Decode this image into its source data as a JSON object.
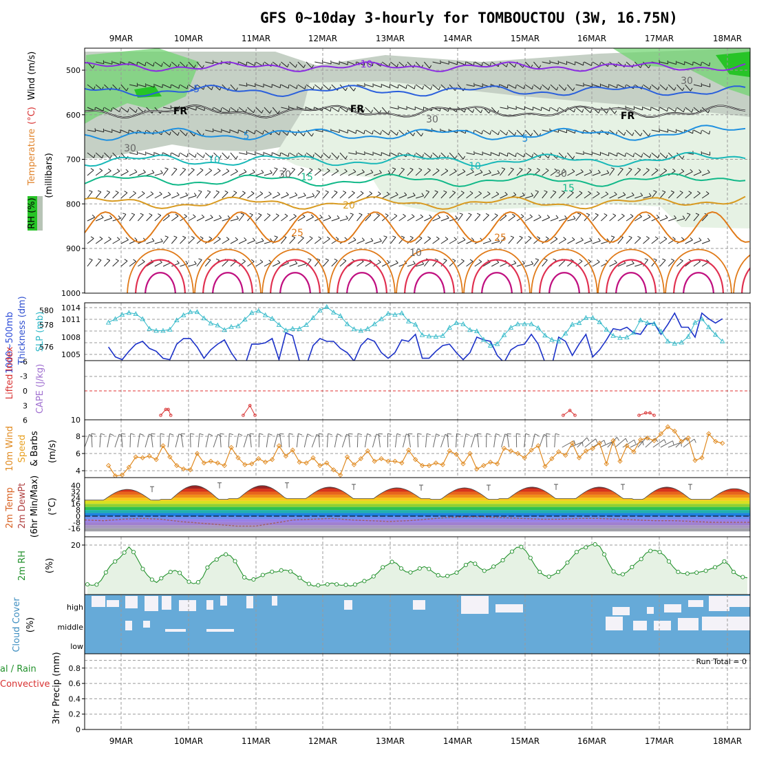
{
  "title": "GFS 0~10day 3-hourly for TOMBOUCTOU (3W, 16.75N)",
  "dates": [
    "9MAR",
    "10MAR",
    "11MAR",
    "12MAR",
    "13MAR",
    "14MAR",
    "15MAR",
    "16MAR",
    "17MAR",
    "18MAR"
  ],
  "run_total": "Run Total = 0",
  "colors": {
    "temp_-10": "#8a2be2",
    "temp_-5": "#2a5fdc",
    "temp_FR": "#000000",
    "temp_5": "#1e90e0",
    "temp_10": "#18b8b8",
    "temp_15": "#10b888",
    "temp_20": "#d89a20",
    "temp_25": "#e07a18",
    "temp_30": "#e03050",
    "temp_35": "#c01080",
    "thickness": "#1a30c8",
    "slp": "#30b8c8",
    "wind10": "#e08a20",
    "rh2m": "#20902a",
    "cloud": "#66aad8",
    "rh_moist": "#6cd46c",
    "rh_dry": "#b9c7b8"
  },
  "panels": {
    "upper": {
      "ylabel_parts": [
        "RH (%)",
        "Temperature",
        "(°C)",
        "Wind (m/s)",
        "(millibars)"
      ],
      "yticks": [
        "500",
        "600",
        "700",
        "800",
        "900",
        "1000"
      ],
      "contour_labels": [
        "-10",
        "-5",
        "FR",
        "FR",
        "FR",
        "5",
        "5",
        "10",
        "10",
        "15",
        "15",
        "20",
        "25",
        "25",
        "30",
        "30",
        "30",
        "30",
        "30",
        "10"
      ]
    },
    "thick": {
      "ylabel_parts": [
        "1000~500mb",
        "Thickness (dm)",
        "SLP (mb)"
      ],
      "yticks_left": [
        "580",
        "578",
        "576"
      ],
      "yticks_right": [
        "1014",
        "1011",
        "1008",
        "1005"
      ]
    },
    "li": {
      "ylabel_parts": [
        "Lifted Index",
        "CAPE (J/kg)"
      ],
      "yticks": [
        "-6",
        "-3",
        "0",
        "3",
        "6"
      ],
      "yticks_cape": [
        "10"
      ]
    },
    "wind": {
      "ylabel_parts": [
        "10m Wind",
        "Speed",
        "& Barbs",
        "(m/s)"
      ],
      "yticks": [
        "8",
        "6",
        "4"
      ]
    },
    "temp": {
      "ylabel_parts": [
        "2m Temp",
        "2m DewPt",
        "(6hr Min/Max)",
        "(°C)"
      ],
      "yticks": [
        "40",
        "32",
        "24",
        "16",
        "8",
        "0",
        "-8",
        "-16"
      ]
    },
    "rh": {
      "ylabel_parts": [
        "2m RH",
        "(%)"
      ],
      "yticks": [
        "20"
      ]
    },
    "cloud": {
      "ylabel_parts": [
        "Cloud Cover",
        "(%)"
      ],
      "levels": [
        "high",
        "middle",
        "low"
      ]
    },
    "precip": {
      "ylabel_parts": [
        "Total / Rain",
        "Convective",
        "3hr Precip (mm)"
      ],
      "yticks": [
        "0.8",
        "0.6",
        "0.4",
        "0.2",
        "0"
      ]
    }
  },
  "chart_data": [
    {
      "type": "line",
      "name": "1000-500mb thickness (dm) & SLP (mb)",
      "x_unit": "3-hourly steps from 08MAR 18Z",
      "series": [
        {
          "name": "Thickness (dm)",
          "values": [
            577.6,
            576.9,
            576.7,
            577.3,
            577.8,
            578.0,
            577.5,
            577.3,
            576.8,
            576.7,
            577.8,
            578.2,
            578.2,
            577.6,
            576.8,
            577.4,
            577.8,
            578.1,
            577.2,
            576.5,
            576.3,
            577.8,
            577.8,
            577.9,
            578.2,
            576.7,
            578.6,
            578.4,
            576.6,
            576.3,
            577.7,
            578.2,
            578.0,
            578.0,
            577.5,
            577.2,
            576.6,
            577.7,
            578.2,
            578.0,
            577.2,
            576.8,
            577.2,
            578.1,
            578.0,
            578.5,
            576.8,
            576.8,
            577.3,
            577.7,
            577.8,
            577.2,
            576.7,
            577.2,
            578.3,
            578.1,
            578.0,
            577.0,
            576.5,
            577.4,
            577.7,
            577.8,
            578.5,
            577.8,
            576.5,
            576.3,
            578.3,
            578.0,
            577.0,
            577.8,
            578.5,
            576.9,
            577.4,
            578.1,
            578.9,
            578.8,
            579.0,
            578.6,
            578.5,
            579.2,
            579.3,
            578.5,
            579.2,
            580.0,
            579.0,
            579.0,
            578.3,
            580.0,
            579.6,
            579.3,
            579.6
          ]
        },
        {
          "name": "SLP (mb)",
          "values": [
            1010.2,
            1011.1,
            1012.2,
            1012.7,
            1012.4,
            1011.1,
            1008.6,
            1008.1,
            1008.1,
            1008.4,
            1010.8,
            1012.1,
            1012.9,
            1012.9,
            1011.3,
            1010.0,
            1009.5,
            1008.3,
            1009.1,
            1009.3,
            1011.0,
            1012.7,
            1013.2,
            1012.1,
            1011.2,
            1009.6,
            1008.2,
            1008.6,
            1008.6,
            1009.6,
            1011.4,
            1013.3,
            1014.2,
            1012.8,
            1011.9,
            1009.8,
            1008.5,
            1008.1,
            1008.6,
            1009.8,
            1011.1,
            1012.5,
            1012.2,
            1012.6,
            1010.5,
            1009.7,
            1007.0,
            1006.7,
            1006.6,
            1006.8,
            1008.9,
            1010.1,
            1009.8,
            1008.3,
            1008.0,
            1005.8,
            1004.3,
            1004.7,
            1007.0,
            1008.9,
            1009.8,
            1009.8,
            1009.8,
            1008.8,
            1006.9,
            1005.8,
            1005.4,
            1007.4,
            1009.7,
            1010.1,
            1011.4,
            1011.4,
            1010.3,
            1008.4,
            1006.8,
            1006.3,
            1006.4,
            1007.6,
            1010.8,
            1010.1,
            1009.9,
            1007.9,
            1005.4,
            1004.8,
            1005.1,
            1006.6,
            1010.2,
            1011.1,
            1009.0,
            1007.1,
            1005.4
          ]
        }
      ]
    },
    {
      "type": "line",
      "name": "Lifted Index",
      "series": [
        {
          "name": "Lifted Index",
          "segments": [
            [
              [
                8.7,
                5.0
              ],
              [
                9.3,
                3.8
              ],
              [
                9.6,
                3.8
              ],
              [
                9.9,
                5.0
              ]
            ],
            [
              [
                18.5,
                5.0
              ],
              [
                19.3,
                3.0
              ],
              [
                19.9,
                5.0
              ]
            ],
            [
              [
                56.5,
                5.0
              ],
              [
                57.3,
                4.0
              ],
              [
                57.9,
                5.0
              ]
            ],
            [
              [
                65.5,
                5.0
              ],
              [
                66.3,
                4.5
              ],
              [
                66.8,
                4.5
              ],
              [
                67.3,
                5.0
              ]
            ]
          ]
        }
      ]
    },
    {
      "type": "line",
      "name": "10m wind speed (m/s)",
      "series": [
        {
          "name": "10m Wind Speed",
          "values": [
            4.6,
            3.4,
            3.5,
            4.4,
            5.6,
            5.5,
            5.7,
            5.3,
            6.9,
            5.6,
            4.6,
            4.2,
            4.1,
            6.0,
            4.9,
            5.1,
            4.9,
            4.6,
            6.7,
            5.5,
            4.7,
            4.8,
            5.4,
            5.0,
            5.3,
            6.9,
            5.7,
            6.4,
            5.0,
            4.9,
            5.5,
            4.6,
            4.9,
            4.1,
            3.5,
            5.6,
            4.7,
            5.4,
            6.3,
            5.1,
            5.4,
            5.1,
            5.1,
            4.9,
            6.4,
            5.3,
            4.6,
            4.6,
            4.9,
            4.7,
            6.3,
            5.9,
            4.8,
            6.0,
            4.2,
            4.6,
            5.0,
            4.8,
            6.6,
            6.3,
            6.0,
            5.5,
            6.4,
            6.9,
            4.5,
            5.4,
            6.2,
            5.8,
            7.2,
            5.5,
            6.3,
            6.6,
            7.2,
            4.8,
            7.5,
            5.1,
            6.9,
            6.2,
            7.6,
            7.8,
            7.5,
            8.3,
            9.1,
            8.6,
            7.4,
            7.8,
            5.2,
            5.5,
            8.3,
            7.4,
            7.2
          ]
        }
      ]
    },
    {
      "type": "line",
      "name": "2m temperature & dewpoint (°C)",
      "series": [
        {
          "name": "2m Temp max",
          "values": [
            35,
            40,
            40,
            38,
            37,
            37,
            38,
            38,
            38,
            36
          ]
        },
        {
          "name": "2m Temp min",
          "values": [
            21,
            22,
            23,
            23,
            23,
            22,
            23,
            23,
            22,
            22
          ]
        },
        {
          "name": "2m DewPt",
          "values": [
            -5,
            -6,
            -4,
            -3,
            -4,
            -7,
            -9,
            -11,
            -13,
            -13,
            -9,
            -5,
            -4,
            -3,
            -5,
            -6,
            -7,
            -6,
            -4,
            -2,
            -1,
            -1,
            -2,
            -3,
            -4,
            -4,
            -3,
            -3,
            -4,
            -5,
            -6,
            -6,
            -7,
            -8,
            -8,
            -8
          ]
        }
      ]
    },
    {
      "type": "line",
      "name": "2m RH (%)",
      "series": [
        {
          "name": "2m RH",
          "values": [
            3.2,
            2.8,
            3.1,
            5.0,
            8.3,
            11.2,
            13.0,
            14.5,
            16.8,
            19.2,
            17.0,
            13.5,
            9.8,
            7.1,
            5.2,
            4.0,
            5.8,
            7.3,
            8.5,
            9.2,
            8.1,
            6.0,
            4.3,
            3.5,
            4.1,
            6.3,
            10.4,
            12.6,
            13.8,
            15.5,
            16.0,
            15.4,
            13.1,
            9.6,
            6.2,
            5.1,
            5.3,
            6.1,
            7.2,
            8.0,
            8.6,
            8.5,
            9.2,
            9.3,
            8.7,
            7.5,
            6.0,
            4.4,
            3.4,
            2.5,
            2.8,
            2.9,
            3.2,
            3.8,
            3.2,
            2.8,
            3.0,
            2.5,
            3.1,
            4.0,
            4.6,
            5.2,
            6.6,
            8.3,
            10.5,
            11.5,
            12.8,
            12.2,
            10.0,
            8.6,
            8.3,
            9.0,
            10.0,
            10.8,
            9.8,
            8.3,
            7.1,
            6.3,
            6.8,
            7.5,
            8.2,
            9.7,
            11.5,
            13.0,
            12.0,
            10.2,
            9.0,
            9.5,
            10.8,
            12.0,
            13.5,
            15.5,
            17.2,
            19.0,
            19.2,
            17.5,
            14.5,
            11.2,
            8.5,
            7.0,
            6.5,
            7.3,
            8.5,
            10.0,
            12.5,
            14.8,
            17.0,
            18.5,
            19.0,
            20.0,
            20.3,
            19.5,
            16.0,
            12.0,
            8.7,
            7.3,
            7.5,
            8.6,
            10.6,
            12.5,
            14.0,
            16.5,
            17.5,
            17.8,
            17.0,
            15.6,
            13.0,
            10.5,
            8.5,
            7.8,
            7.8,
            8.0,
            8.2,
            8.6,
            9.0,
            9.8,
            10.5,
            11.5,
            13.0,
            11.5,
            8.5,
            7.0,
            6.3,
            6.0
          ]
        }
      ]
    },
    {
      "type": "bar",
      "name": "3hr precipitation (mm)",
      "ylim": [
        0,
        0.9
      ],
      "values": []
    }
  ]
}
